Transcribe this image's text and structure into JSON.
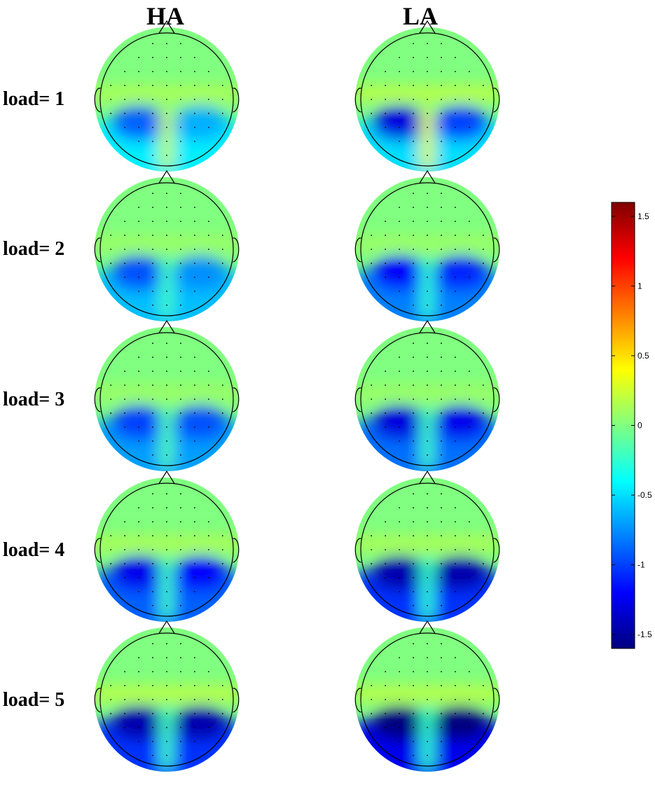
{
  "chart_data": {
    "type": "heatmap",
    "description_kind": "topographic scalp maps",
    "columns": [
      "HA",
      "LA"
    ],
    "rows": [
      "load= 1",
      "load= 2",
      "load= 3",
      "load= 4",
      "load= 5"
    ],
    "values": [
      {
        "row": "load= 1",
        "HA": {
          "frontal": 0,
          "central": 0.15,
          "left_posterior": -0.9,
          "right_posterior": -0.65,
          "midline_posterior": 0.2,
          "lower": -0.45
        },
        "LA": {
          "frontal": 0,
          "central": 0.2,
          "left_posterior": -1.3,
          "right_posterior": -1.0,
          "midline_posterior": 0.3,
          "lower": -0.5
        }
      },
      {
        "row": "load= 2",
        "HA": {
          "frontal": 0,
          "central": 0.1,
          "left_posterior": -0.95,
          "right_posterior": -0.75,
          "midline_posterior": -0.2,
          "lower": -0.6
        },
        "LA": {
          "frontal": 0,
          "central": 0.1,
          "left_posterior": -1.2,
          "right_posterior": -1.1,
          "midline_posterior": -0.25,
          "lower": -0.8
        }
      },
      {
        "row": "load= 3",
        "HA": {
          "frontal": 0,
          "central": 0.1,
          "left_posterior": -1.0,
          "right_posterior": -0.95,
          "midline_posterior": -0.15,
          "lower": -0.7
        },
        "LA": {
          "frontal": 0,
          "central": 0.1,
          "left_posterior": -1.3,
          "right_posterior": -1.25,
          "midline_posterior": -0.2,
          "lower": -0.85
        }
      },
      {
        "row": "load= 4",
        "HA": {
          "frontal": 0,
          "central": 0.15,
          "left_posterior": -1.25,
          "right_posterior": -1.2,
          "midline_posterior": -0.2,
          "lower": -0.9
        },
        "LA": {
          "frontal": 0,
          "central": 0.15,
          "left_posterior": -1.45,
          "right_posterior": -1.45,
          "midline_posterior": -0.25,
          "lower": -1.05
        }
      },
      {
        "row": "load= 5",
        "HA": {
          "frontal": 0,
          "central": 0.2,
          "left_posterior": -1.45,
          "right_posterior": -1.45,
          "midline_posterior": -0.2,
          "lower": -1.05
        },
        "LA": {
          "frontal": 0,
          "central": 0.2,
          "left_posterior": -1.6,
          "right_posterior": -1.6,
          "midline_posterior": -0.25,
          "lower": -1.25
        }
      }
    ],
    "colorbar": {
      "min": -1.6,
      "max": 1.6,
      "ticks": [
        1.5,
        1,
        0.5,
        0,
        -0.5,
        -1,
        -1.5
      ],
      "tick_labels": [
        "1.5",
        "1",
        "0.5",
        "0",
        "-0.5",
        "-1",
        "-1.5"
      ],
      "colormap": "jet",
      "placement": "right"
    },
    "grid": false
  }
}
